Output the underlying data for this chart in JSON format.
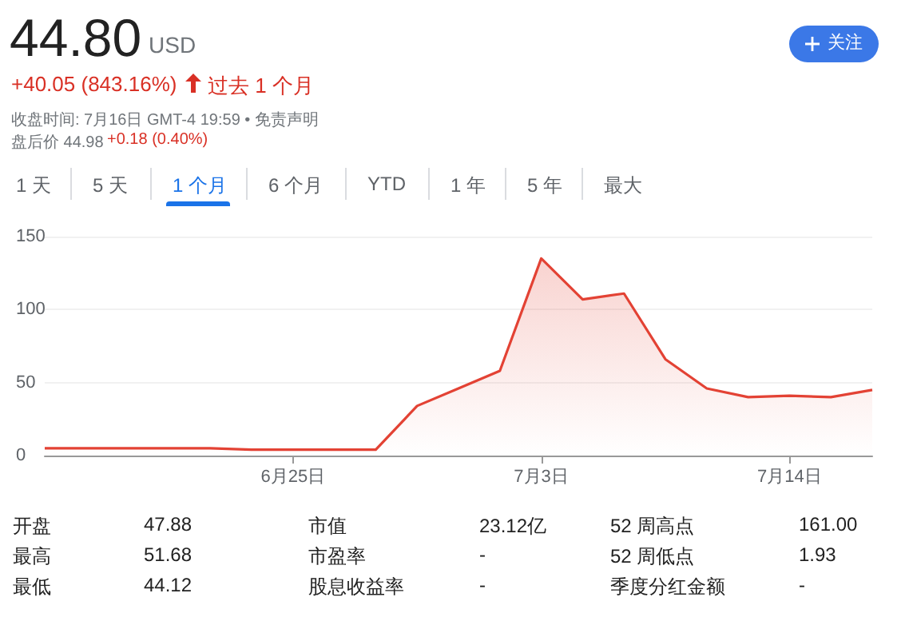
{
  "chart_data": {
    "type": "area",
    "title": "44.80",
    "subtitle": "USD",
    "annotations": [
      "+40.05 (843.16%)",
      "过去 1 个月",
      "收盘时间: 7月16日 GMT-4 19:59 • 免责声明",
      "盘后价 44.98",
      "+0.18 (0.40%)",
      "关注",
      "1 天",
      "5 天",
      "1 个月",
      "6 个月",
      "YTD",
      "1 年",
      "5 年",
      "最大",
      "开盘",
      "47.88",
      "市值",
      "23.12亿",
      "52 周高点",
      "161.00",
      "最高",
      "51.68",
      "市盈率",
      "-",
      "52 周低点",
      "1.93",
      "最低",
      "44.12",
      "股息收益率",
      "-",
      "季度分红金额",
      "-"
    ],
    "categories": [
      null,
      null,
      null,
      null,
      null,
      null,
      "6月25日",
      null,
      null,
      null,
      null,
      null,
      "7月3日",
      null,
      null,
      null,
      null,
      null,
      "7月14日",
      null,
      null
    ],
    "series": [
      {
        "color": "#e34234",
        "values": [
          5,
          5,
          5,
          5,
          5,
          4,
          4,
          4,
          4,
          34,
          46,
          58,
          135,
          107,
          111,
          66,
          46,
          40,
          41,
          40,
          45
        ]
      }
    ],
    "ylim": [
      0,
      150
    ],
    "yticks": [
      0,
      50,
      100,
      150
    ],
    "grid": "y",
    "marker": "none",
    "line_style": "solid"
  }
}
